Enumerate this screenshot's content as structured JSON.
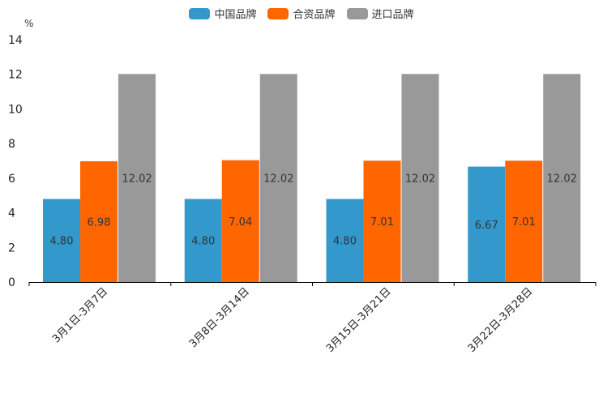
{
  "chart_data": {
    "type": "bar",
    "unit_label": "%",
    "categories": [
      "3月1日-3月7日",
      "3月8日-3月14日",
      "3月15日-3月21日",
      "3月22日-3月28日"
    ],
    "series": [
      {
        "name": "中国品牌",
        "color": "#3399cc",
        "values": [
          4.8,
          4.8,
          4.8,
          6.67
        ],
        "labels": [
          "4.80",
          "4.80",
          "4.80",
          "6.67"
        ]
      },
      {
        "name": "合资品牌",
        "color": "#ff6600",
        "values": [
          6.98,
          7.04,
          7.01,
          7.01
        ],
        "labels": [
          "6.98",
          "7.04",
          "7.01",
          "7.01"
        ]
      },
      {
        "name": "进口品牌",
        "color": "#999999",
        "values": [
          12.02,
          12.02,
          12.02,
          12.02
        ],
        "labels": [
          "12.02",
          "12.02",
          "12.02",
          "12.02"
        ]
      }
    ],
    "yticks": [
      "0",
      "2",
      "4",
      "6",
      "8",
      "10",
      "12",
      "14"
    ],
    "ylim": [
      0,
      14
    ],
    "legend_position": "top-center"
  }
}
